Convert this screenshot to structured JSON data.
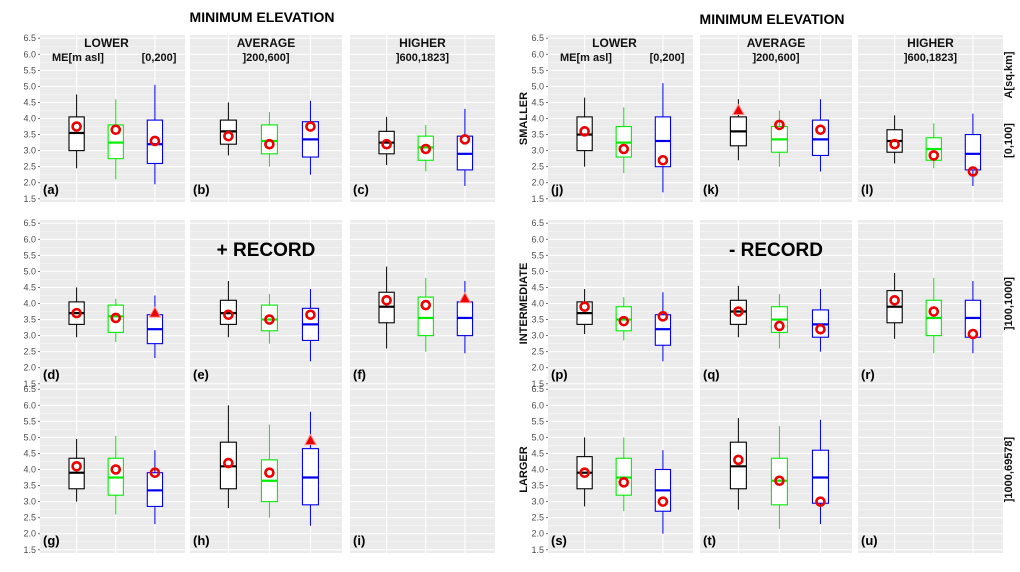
{
  "titles": {
    "left": "MINIMUM ELEVATION",
    "right": "MINIMUM ELEVATION"
  },
  "columns": [
    {
      "title": "LOWER",
      "range": "[0,200]"
    },
    {
      "title": "AVERAGE",
      "range": "]200,600]"
    },
    {
      "title": "HIGHER",
      "range": "]600,1823]"
    }
  ],
  "ylabel": "ME[m asl]",
  "area_label": "A[sq.km]",
  "row_names": [
    "SMALLER",
    "INTERMEDIATE",
    "LARGER"
  ],
  "row_ranges": [
    "[0,100]",
    "]100,1000]",
    "]1000,69578]"
  ],
  "record_labels": [
    "+ RECORD",
    "- RECORD"
  ],
  "colors": {
    "box1": "#000000",
    "box2": "#00ee00",
    "box3": "#0000ee",
    "marker": "#ee0000",
    "panel_bg": "#ebebeb"
  },
  "chart_data": {
    "type": "boxplot",
    "ylim": [
      1.4,
      6.6
    ],
    "yticks": [
      "1.5",
      "2.0",
      "2.5",
      "3.0",
      "3.5",
      "4.0",
      "4.5",
      "5.0",
      "5.5",
      "6.0",
      "6.5"
    ],
    "series_colors": [
      "black",
      "green",
      "blue"
    ],
    "groups": [
      {
        "label": "+ RECORD",
        "panels": [
          {
            "id": "(a)",
            "boxes": [
              {
                "min": 2.45,
                "q1": 3.0,
                "med": 3.55,
                "q3": 4.05,
                "max": 4.75,
                "marker": "circle",
                "mv": 3.75
              },
              {
                "min": 2.1,
                "q1": 2.75,
                "med": 3.25,
                "q3": 3.8,
                "max": 4.6,
                "marker": "circle",
                "mv": 3.65
              },
              {
                "min": 1.95,
                "q1": 2.6,
                "med": 3.2,
                "q3": 3.95,
                "max": 5.05,
                "marker": "circle",
                "mv": 3.3
              }
            ]
          },
          {
            "id": "(b)",
            "boxes": [
              {
                "min": 2.85,
                "q1": 3.2,
                "med": 3.6,
                "q3": 3.95,
                "max": 4.5,
                "marker": "circle",
                "mv": 3.45
              },
              {
                "min": 2.5,
                "q1": 2.9,
                "med": 3.3,
                "q3": 3.8,
                "max": 4.2,
                "marker": "circle",
                "mv": 3.2
              },
              {
                "min": 2.25,
                "q1": 2.8,
                "med": 3.35,
                "q3": 3.9,
                "max": 4.55,
                "marker": "circle",
                "mv": 3.75
              }
            ]
          },
          {
            "id": "(c)",
            "boxes": [
              {
                "min": 2.55,
                "q1": 2.9,
                "med": 3.25,
                "q3": 3.6,
                "max": 4.05,
                "marker": "circle",
                "mv": 3.2
              },
              {
                "min": 2.35,
                "q1": 2.7,
                "med": 3.1,
                "q3": 3.45,
                "max": 3.8,
                "marker": "circle",
                "mv": 3.05
              },
              {
                "min": 1.9,
                "q1": 2.4,
                "med": 2.9,
                "q3": 3.45,
                "max": 4.3,
                "marker": "circle",
                "mv": 3.35
              }
            ]
          },
          {
            "id": "(d)",
            "boxes": [
              {
                "min": 2.95,
                "q1": 3.35,
                "med": 3.7,
                "q3": 4.05,
                "max": 4.5,
                "marker": "circle",
                "mv": 3.7
              },
              {
                "min": 2.8,
                "q1": 3.1,
                "med": 3.6,
                "q3": 3.95,
                "max": 4.15,
                "marker": "circle",
                "mv": 3.55
              },
              {
                "min": 2.3,
                "q1": 2.75,
                "med": 3.2,
                "q3": 3.65,
                "max": 4.25,
                "marker": "triangle",
                "mv": 3.7
              }
            ]
          },
          {
            "id": "(e)",
            "boxes": [
              {
                "min": 2.95,
                "q1": 3.35,
                "med": 3.7,
                "q3": 4.1,
                "max": 4.7,
                "marker": "circle",
                "mv": 3.65
              },
              {
                "min": 2.75,
                "q1": 3.15,
                "med": 3.5,
                "q3": 3.95,
                "max": 4.3,
                "marker": "circle",
                "mv": 3.5
              },
              {
                "min": 2.2,
                "q1": 2.85,
                "med": 3.35,
                "q3": 3.85,
                "max": 4.45,
                "marker": "circle",
                "mv": 3.65
              }
            ]
          },
          {
            "id": "(f)",
            "boxes": [
              {
                "min": 2.6,
                "q1": 3.4,
                "med": 3.9,
                "q3": 4.35,
                "max": 5.15,
                "marker": "circle",
                "mv": 4.1
              },
              {
                "min": 2.5,
                "q1": 3.0,
                "med": 3.55,
                "q3": 4.2,
                "max": 4.8,
                "marker": "circle",
                "mv": 3.95
              },
              {
                "min": 2.45,
                "q1": 3.0,
                "med": 3.55,
                "q3": 4.05,
                "max": 4.7,
                "marker": "triangle",
                "mv": 4.15
              }
            ]
          },
          {
            "id": "(g)",
            "boxes": [
              {
                "min": 3.0,
                "q1": 3.4,
                "med": 3.9,
                "q3": 4.35,
                "max": 4.95,
                "marker": "circle",
                "mv": 4.1
              },
              {
                "min": 2.6,
                "q1": 3.2,
                "med": 3.75,
                "q3": 4.35,
                "max": 5.05,
                "marker": "circle",
                "mv": 4.0
              },
              {
                "min": 2.3,
                "q1": 2.85,
                "med": 3.35,
                "q3": 3.9,
                "max": 4.6,
                "marker": "circle",
                "mv": 3.9
              }
            ]
          },
          {
            "id": "(h)",
            "boxes": [
              {
                "min": 2.8,
                "q1": 3.4,
                "med": 4.1,
                "q3": 4.85,
                "max": 6.0,
                "marker": "circle",
                "mv": 4.2
              },
              {
                "min": 2.5,
                "q1": 3.0,
                "med": 3.65,
                "q3": 4.3,
                "max": 5.4,
                "marker": "circle",
                "mv": 3.9
              },
              {
                "min": 2.25,
                "q1": 2.9,
                "med": 3.75,
                "q3": 4.65,
                "max": 5.8,
                "marker": "triangle",
                "mv": 4.9
              }
            ]
          },
          {
            "id": "(i)",
            "boxes": []
          }
        ]
      },
      {
        "label": "- RECORD",
        "panels": [
          {
            "id": "(j)",
            "boxes": [
              {
                "min": 2.5,
                "q1": 3.0,
                "med": 3.5,
                "q3": 4.05,
                "max": 4.65,
                "marker": "circle",
                "mv": 3.6
              },
              {
                "min": 2.3,
                "q1": 2.8,
                "med": 3.25,
                "q3": 3.75,
                "max": 4.35,
                "marker": "circle",
                "mv": 3.05
              },
              {
                "min": 1.7,
                "q1": 2.5,
                "med": 3.3,
                "q3": 4.05,
                "max": 5.1,
                "marker": "circle",
                "mv": 2.7
              }
            ]
          },
          {
            "id": "(k)",
            "boxes": [
              {
                "min": 2.7,
                "q1": 3.15,
                "med": 3.6,
                "q3": 4.05,
                "max": 4.6,
                "marker": "triangle",
                "mv": 4.25
              },
              {
                "min": 2.5,
                "q1": 2.95,
                "med": 3.35,
                "q3": 3.75,
                "max": 4.25,
                "marker": "circle",
                "mv": 3.8
              },
              {
                "min": 2.35,
                "q1": 2.85,
                "med": 3.35,
                "q3": 3.95,
                "max": 4.6,
                "marker": "circle",
                "mv": 3.65
              }
            ]
          },
          {
            "id": "(l)",
            "boxes": [
              {
                "min": 2.6,
                "q1": 2.95,
                "med": 3.3,
                "q3": 3.65,
                "max": 4.1,
                "marker": "circle",
                "mv": 3.2
              },
              {
                "min": 2.45,
                "q1": 2.7,
                "med": 3.05,
                "q3": 3.4,
                "max": 3.85,
                "marker": "circle",
                "mv": 2.85
              },
              {
                "min": 1.9,
                "q1": 2.4,
                "med": 2.9,
                "q3": 3.5,
                "max": 4.15,
                "marker": "circle",
                "mv": 2.35
              }
            ]
          },
          {
            "id": "(p)",
            "boxes": [
              {
                "min": 3.05,
                "q1": 3.35,
                "med": 3.7,
                "q3": 4.05,
                "max": 4.45,
                "marker": "circle",
                "mv": 3.9
              },
              {
                "min": 2.85,
                "q1": 3.15,
                "med": 3.5,
                "q3": 3.9,
                "max": 4.2,
                "marker": "circle",
                "mv": 3.45
              },
              {
                "min": 2.2,
                "q1": 2.7,
                "med": 3.2,
                "q3": 3.65,
                "max": 4.35,
                "marker": "circle",
                "mv": 3.6
              }
            ]
          },
          {
            "id": "(q)",
            "boxes": [
              {
                "min": 2.95,
                "q1": 3.35,
                "med": 3.75,
                "q3": 4.1,
                "max": 4.55,
                "marker": "circle",
                "mv": 3.75
              },
              {
                "min": 2.6,
                "q1": 3.1,
                "med": 3.5,
                "q3": 3.9,
                "max": 4.3,
                "marker": "circle",
                "mv": 3.3
              },
              {
                "min": 2.5,
                "q1": 2.95,
                "med": 3.35,
                "q3": 3.8,
                "max": 4.45,
                "marker": "circle",
                "mv": 3.2
              }
            ]
          },
          {
            "id": "(r)",
            "boxes": [
              {
                "min": 2.9,
                "q1": 3.4,
                "med": 3.9,
                "q3": 4.4,
                "max": 4.95,
                "marker": "circle",
                "mv": 4.1
              },
              {
                "min": 2.45,
                "q1": 3.0,
                "med": 3.55,
                "q3": 4.1,
                "max": 4.8,
                "marker": "circle",
                "mv": 3.75
              },
              {
                "min": 2.45,
                "q1": 2.95,
                "med": 3.55,
                "q3": 4.1,
                "max": 4.7,
                "marker": "circle",
                "mv": 3.05
              }
            ]
          },
          {
            "id": "(s)",
            "boxes": [
              {
                "min": 2.85,
                "q1": 3.4,
                "med": 3.9,
                "q3": 4.4,
                "max": 5.0,
                "marker": "circle",
                "mv": 3.9
              },
              {
                "min": 2.7,
                "q1": 3.2,
                "med": 3.75,
                "q3": 4.35,
                "max": 5.0,
                "marker": "circle",
                "mv": 3.6
              },
              {
                "min": 2.0,
                "q1": 2.7,
                "med": 3.35,
                "q3": 4.0,
                "max": 4.6,
                "marker": "circle",
                "mv": 3.0
              }
            ]
          },
          {
            "id": "(t)",
            "boxes": [
              {
                "min": 2.75,
                "q1": 3.4,
                "med": 4.1,
                "q3": 4.85,
                "max": 5.6,
                "marker": "circle",
                "mv": 4.3
              },
              {
                "min": 2.15,
                "q1": 2.9,
                "med": 3.65,
                "q3": 4.35,
                "max": 5.35,
                "marker": "circle",
                "mv": 3.65
              },
              {
                "min": 2.3,
                "q1": 2.95,
                "med": 3.75,
                "q3": 4.6,
                "max": 5.55,
                "marker": "circle",
                "mv": 3.0
              }
            ]
          },
          {
            "id": "(u)",
            "boxes": []
          }
        ]
      }
    ]
  }
}
